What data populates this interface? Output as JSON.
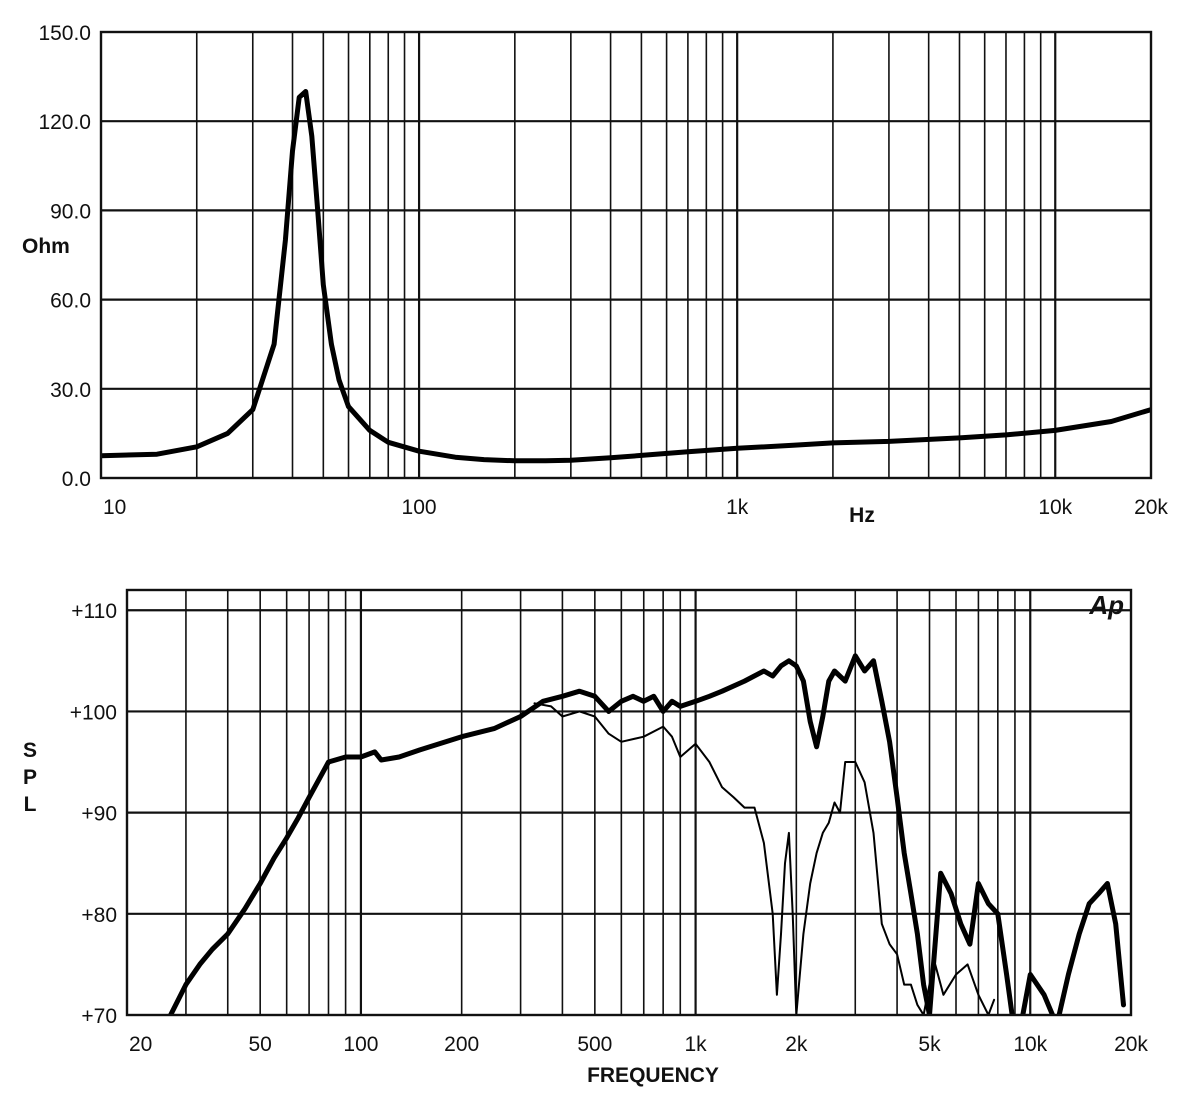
{
  "chart_data": [
    {
      "type": "line",
      "title": "",
      "ylabel": "Ohm",
      "xlabel": "Hz",
      "x_scale": "log",
      "xlim": [
        10,
        20000
      ],
      "ylim": [
        0,
        150
      ],
      "y_ticks": [
        0,
        30,
        60,
        90,
        120,
        150
      ],
      "y_tick_labels": [
        "0.0",
        "30.0",
        "60.0",
        "90.0",
        "120.0",
        "150.0"
      ],
      "x_tick_labels": [
        {
          "x": 10,
          "label": "10"
        },
        {
          "x": 100,
          "label": "100"
        },
        {
          "x": 1000,
          "label": "1k"
        },
        {
          "x": 10000,
          "label": "10k"
        },
        {
          "x": 20000,
          "label": "20k"
        }
      ],
      "grid": true,
      "series": [
        {
          "style": "thick",
          "x": [
            10,
            15,
            20,
            25,
            30,
            35,
            38,
            40,
            42,
            44,
            46,
            48,
            50,
            53,
            56,
            60,
            70,
            80,
            100,
            130,
            160,
            200,
            250,
            300,
            400,
            500,
            700,
            1000,
            1500,
            2000,
            3000,
            5000,
            7000,
            10000,
            15000,
            20000
          ],
          "y": [
            7.5,
            8,
            10.5,
            15,
            23,
            45,
            80,
            110,
            128,
            130,
            115,
            90,
            65,
            45,
            33,
            24,
            16,
            12,
            9,
            7,
            6.2,
            5.8,
            5.8,
            6,
            6.8,
            7.6,
            8.8,
            10,
            11,
            11.8,
            12.3,
            13.5,
            14.5,
            16,
            19,
            23
          ]
        }
      ]
    },
    {
      "type": "line",
      "title": "",
      "ylabel": "S P L",
      "xlabel": "FREQUENCY",
      "x_scale": "log",
      "xlim": [
        20,
        20000
      ],
      "ylim": [
        70,
        112
      ],
      "y_ticks": [
        70,
        80,
        90,
        100,
        110
      ],
      "y_tick_labels": [
        "+70",
        "+80",
        "+90",
        "+100",
        "+110"
      ],
      "x_tick_labels": [
        {
          "x": 20,
          "label": "20"
        },
        {
          "x": 50,
          "label": "50"
        },
        {
          "x": 100,
          "label": "100"
        },
        {
          "x": 200,
          "label": "200"
        },
        {
          "x": 500,
          "label": "500"
        },
        {
          "x": 1000,
          "label": "1k"
        },
        {
          "x": 2000,
          "label": "2k"
        },
        {
          "x": 5000,
          "label": "5k"
        },
        {
          "x": 10000,
          "label": "10k"
        },
        {
          "x": 20000,
          "label": "20k"
        }
      ],
      "brand": "Ap",
      "grid": true,
      "series": [
        {
          "style": "thick",
          "x": [
            27,
            30,
            33,
            36,
            40,
            45,
            50,
            55,
            60,
            65,
            70,
            80,
            90,
            100,
            110,
            115,
            130,
            150,
            200,
            250,
            300,
            350,
            400,
            450,
            500,
            550,
            600,
            650,
            700,
            750,
            800,
            850,
            900,
            1000,
            1100,
            1200,
            1400,
            1600,
            1700,
            1800,
            1900,
            2000,
            2100,
            2200,
            2300,
            2400,
            2500,
            2600,
            2800,
            3000,
            3200,
            3400,
            3600,
            3800,
            4000,
            4200,
            4400,
            4600,
            4800,
            5000,
            5400,
            5800,
            6200,
            6600,
            7000,
            7500,
            8000,
            8500,
            9000,
            9500,
            10000,
            11000,
            12000,
            13000,
            14000,
            15000,
            16000,
            17000,
            18000,
            19000
          ],
          "y": [
            70,
            73,
            75,
            76.5,
            78,
            80.5,
            83,
            85.5,
            87.5,
            89.5,
            91.5,
            95,
            95.5,
            95.5,
            96,
            95.2,
            95.5,
            96.2,
            97.5,
            98.3,
            99.5,
            101,
            101.5,
            102,
            101.5,
            100,
            101,
            101.5,
            101,
            101.5,
            100,
            101,
            100.5,
            101,
            101.5,
            102,
            103,
            104,
            103.5,
            104.5,
            105,
            104.5,
            103,
            99,
            96.5,
            99.5,
            103,
            104,
            103,
            105.5,
            104,
            105,
            101,
            97,
            91.5,
            86,
            82,
            78,
            73,
            70,
            84,
            82,
            79,
            77,
            83,
            81,
            80,
            74,
            68,
            70,
            74,
            72,
            69,
            74,
            78,
            81,
            82,
            83,
            79,
            71
          ]
        },
        {
          "style": "thin",
          "x": [
            330,
            370,
            400,
            450,
            500,
            550,
            600,
            700,
            800,
            850,
            900,
            1000,
            1100,
            1200,
            1300,
            1400,
            1500,
            1600,
            1700,
            1750,
            1800,
            1850,
            1900,
            1950,
            2000,
            2100,
            2200,
            2300,
            2400,
            2500,
            2600,
            2700,
            2800,
            3000,
            3200,
            3400,
            3600,
            3800,
            4000,
            4200,
            4400,
            4600,
            4800,
            5000,
            5200,
            5500,
            6000,
            6500,
            7000,
            7500,
            7800
          ],
          "y": [
            100.8,
            100.5,
            99.5,
            100,
            99.5,
            97.8,
            97,
            97.5,
            98.5,
            97.5,
            95.5,
            96.8,
            95,
            92.5,
            91.5,
            90.5,
            90.5,
            87,
            80,
            72,
            78,
            85,
            88,
            80,
            70,
            78,
            83,
            86,
            88,
            89,
            91,
            90,
            95,
            95,
            93,
            88,
            79,
            77,
            76,
            73,
            73,
            71,
            70,
            73,
            75,
            72,
            74,
            75,
            72,
            70,
            71.5
          ]
        }
      ]
    }
  ]
}
